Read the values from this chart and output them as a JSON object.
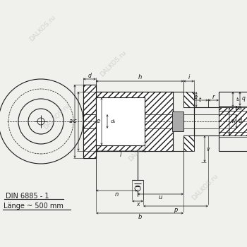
{
  "bg_color": "#f0f0ec",
  "line_color": "#1a1a1a",
  "watermark_text": "DALKOS.ru",
  "text_din": "DIN 6885 - 1",
  "text_laenge": "Länge ~ 500 mm"
}
